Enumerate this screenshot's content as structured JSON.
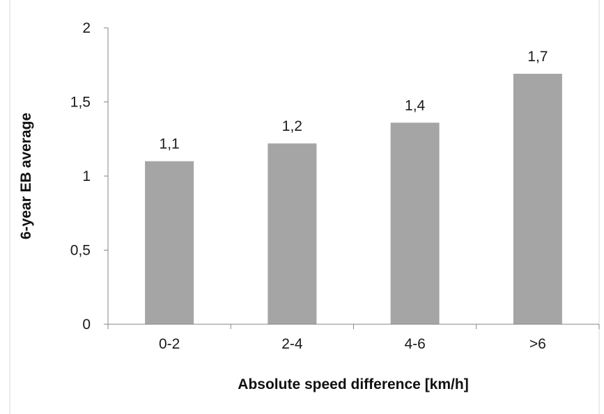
{
  "chart_data": {
    "type": "bar",
    "categories": [
      "0-2",
      "2-4",
      "4-6",
      ">6"
    ],
    "values": [
      1.1,
      1.22,
      1.36,
      1.69
    ],
    "data_labels": [
      "1,1",
      "1,2",
      "1,4",
      "1,7"
    ],
    "xlabel": "Absolute speed difference [km/h]",
    "ylabel": "6-year EB average",
    "ylim": [
      0,
      2
    ],
    "yticks": [
      0,
      0.5,
      1,
      1.5,
      2
    ],
    "ytick_labels": [
      "0",
      "0,5",
      "1",
      "1,5",
      "2"
    ],
    "grid": false,
    "legend": "none",
    "bar_color": "#a5a5a5",
    "axis_color": "#868686"
  }
}
